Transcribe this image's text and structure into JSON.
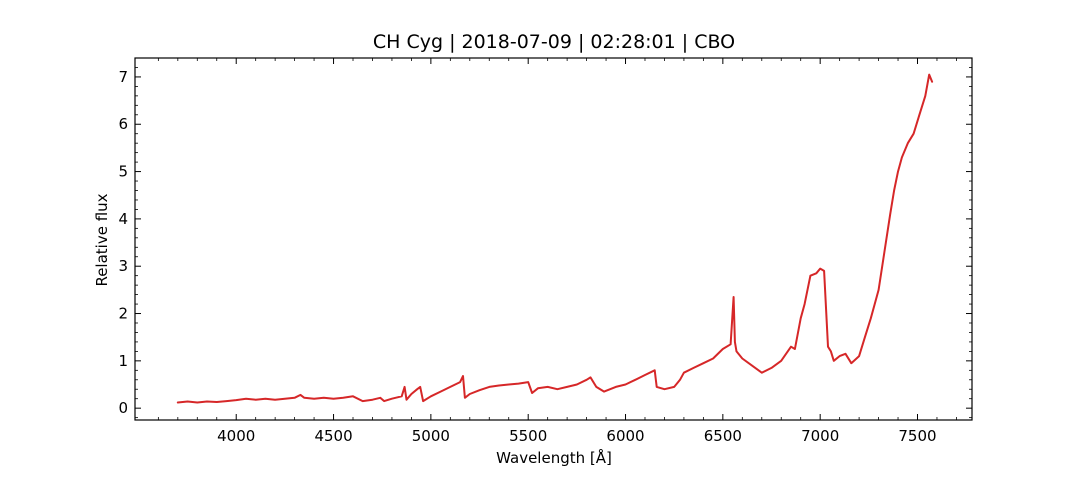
{
  "chart_data": {
    "type": "line",
    "title": "CH Cyg | 2018-07-09 | 02:28:01 | CBO",
    "xlabel": "Wavelength [Å]",
    "ylabel": "Relative flux",
    "xlim": [
      3480,
      7780
    ],
    "ylim": [
      -0.25,
      7.4
    ],
    "xticks": [
      4000,
      4500,
      5000,
      5500,
      6000,
      6500,
      7000,
      7500
    ],
    "yticks": [
      0,
      1,
      2,
      3,
      4,
      5,
      6,
      7
    ],
    "grid": false,
    "series": [
      {
        "color": "#d62728",
        "x": [
          3700,
          3750,
          3800,
          3850,
          3900,
          3950,
          4000,
          4050,
          4100,
          4150,
          4200,
          4250,
          4300,
          4330,
          4350,
          4400,
          4450,
          4500,
          4550,
          4600,
          4650,
          4700,
          4740,
          4760,
          4800,
          4850,
          4865,
          4875,
          4900,
          4930,
          4945,
          4960,
          5000,
          5050,
          5100,
          5150,
          5165,
          5175,
          5200,
          5250,
          5300,
          5350,
          5400,
          5450,
          5500,
          5520,
          5550,
          5600,
          5650,
          5700,
          5750,
          5800,
          5820,
          5850,
          5890,
          5950,
          6000,
          6050,
          6100,
          6150,
          6160,
          6200,
          6250,
          6280,
          6300,
          6350,
          6400,
          6450,
          6500,
          6540,
          6555,
          6562,
          6570,
          6600,
          6650,
          6700,
          6750,
          6800,
          6850,
          6870,
          6900,
          6920,
          6950,
          6980,
          7000,
          7020,
          7040,
          7055,
          7070,
          7100,
          7130,
          7160,
          7200,
          7230,
          7260,
          7280,
          7300,
          7330,
          7360,
          7380,
          7400,
          7420,
          7450,
          7480,
          7510,
          7540,
          7560,
          7575
        ],
        "y": [
          0.12,
          0.14,
          0.12,
          0.14,
          0.13,
          0.15,
          0.17,
          0.2,
          0.18,
          0.2,
          0.18,
          0.2,
          0.22,
          0.28,
          0.22,
          0.2,
          0.22,
          0.2,
          0.22,
          0.25,
          0.15,
          0.18,
          0.22,
          0.15,
          0.2,
          0.25,
          0.45,
          0.18,
          0.3,
          0.4,
          0.45,
          0.15,
          0.25,
          0.35,
          0.45,
          0.55,
          0.68,
          0.22,
          0.3,
          0.38,
          0.45,
          0.48,
          0.5,
          0.52,
          0.55,
          0.32,
          0.42,
          0.45,
          0.4,
          0.45,
          0.5,
          0.6,
          0.65,
          0.45,
          0.35,
          0.45,
          0.5,
          0.6,
          0.7,
          0.8,
          0.45,
          0.4,
          0.45,
          0.6,
          0.75,
          0.85,
          0.95,
          1.05,
          1.25,
          1.35,
          2.35,
          1.4,
          1.2,
          1.05,
          0.9,
          0.75,
          0.85,
          1.0,
          1.3,
          1.25,
          1.9,
          2.2,
          2.8,
          2.85,
          2.95,
          2.9,
          1.3,
          1.2,
          1.0,
          1.1,
          1.15,
          0.95,
          1.1,
          1.5,
          1.9,
          2.2,
          2.5,
          3.3,
          4.1,
          4.6,
          5.0,
          5.3,
          5.6,
          5.8,
          6.2,
          6.6,
          7.05,
          6.9
        ]
      }
    ]
  }
}
